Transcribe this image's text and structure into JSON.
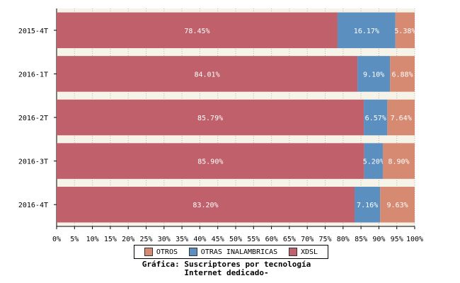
{
  "chart_data": {
    "type": "bar",
    "orientation": "horizontal",
    "stacked": true,
    "categories": [
      "2015-4T",
      "2016-1T",
      "2016-2T",
      "2016-3T",
      "2016-4T"
    ],
    "series": [
      {
        "name": "XDSL",
        "color": "#c0606a",
        "values": [
          78.45,
          84.01,
          85.79,
          85.9,
          83.2
        ],
        "labels": [
          "78.45%",
          "84.01%",
          "85.79%",
          "85.90%",
          "83.20%"
        ]
      },
      {
        "name": "OTRAS INALAMBRICAS",
        "color": "#5b8fc0",
        "values": [
          16.17,
          9.1,
          6.57,
          5.2,
          7.16
        ],
        "labels": [
          "16.17%",
          "9.10%",
          "6.57%",
          "5.20%",
          "7.16%"
        ]
      },
      {
        "name": "OTROS",
        "color": "#d78a72",
        "values": [
          5.38,
          6.88,
          7.64,
          8.9,
          9.63
        ],
        "labels": [
          "5.38%",
          "6.88%",
          "7.64%",
          "8.90%",
          "9.63%"
        ]
      }
    ],
    "legend_order": [
      "OTROS",
      "OTRAS INALAMBRICAS",
      "XDSL"
    ],
    "xlim": [
      0,
      100
    ],
    "xticks": [
      "0%",
      "5%",
      "10%",
      "15%",
      "20%",
      "25%",
      "30%",
      "35%",
      "40%",
      "45%",
      "50%",
      "55%",
      "60%",
      "65%",
      "70%",
      "75%",
      "80%",
      "85%",
      "90%",
      "95%",
      "100%"
    ],
    "grid": true,
    "legend_position": "bottom",
    "caption_line1": "Gráfica: Suscriptores por tecnología",
    "caption_line2": "Internet dedicado-"
  }
}
